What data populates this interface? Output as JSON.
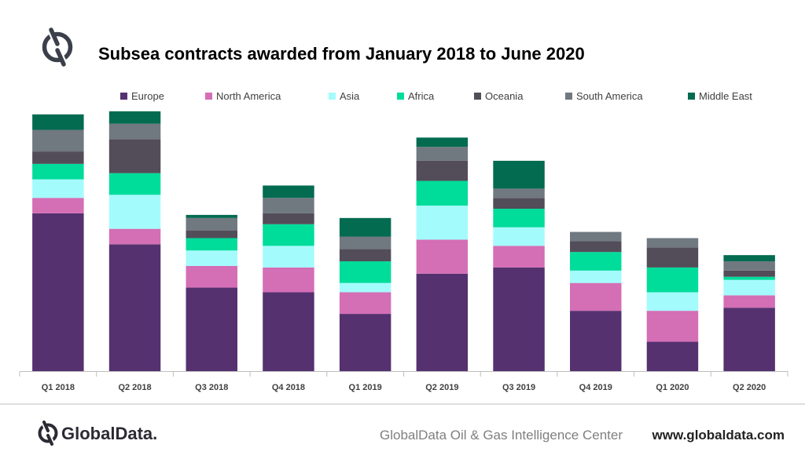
{
  "header": {
    "title": "Subsea contracts awarded from January 2018 to June 2020"
  },
  "footer": {
    "brand": "GlobalData.",
    "source": "GlobalData Oil & Gas Intelligence Center",
    "url": "www.globaldata.com"
  },
  "colors": {
    "logo": "#3a3f4a",
    "separator": "#bfbfbf"
  },
  "chart_data": {
    "type": "bar",
    "stacked": true,
    "title": "Subsea contracts awarded from January 2018 to June 2020",
    "xlabel": "",
    "ylabel": "",
    "ylim": [
      0,
      87
    ],
    "legend_position": "top",
    "grid": false,
    "categories": [
      "Q1 2018",
      "Q2 2018",
      "Q3 2018",
      "Q4 2018",
      "Q1 2019",
      "Q2 2019",
      "Q3 2019",
      "Q4 2019",
      "Q1 2020",
      "Q2 2020"
    ],
    "series": [
      {
        "name": "Europe",
        "color": "#553170",
        "values": [
          51,
          41,
          27,
          25.5,
          18.5,
          31.5,
          33.5,
          19.5,
          9.5,
          20.5
        ]
      },
      {
        "name": "North America",
        "color": "#d46eb5",
        "values": [
          5,
          5,
          7,
          8,
          7,
          11,
          7,
          9,
          10,
          4
        ]
      },
      {
        "name": "Asia",
        "color": "#a4fbfc",
        "values": [
          6,
          11,
          5,
          7,
          3,
          11,
          6,
          4,
          6,
          5
        ]
      },
      {
        "name": "Africa",
        "color": "#00dc9a",
        "values": [
          5,
          7,
          4,
          7,
          7,
          8,
          6,
          6,
          8,
          1
        ]
      },
      {
        "name": "Oceania",
        "color": "#524d58",
        "values": [
          4,
          11,
          2.5,
          3.5,
          4,
          6.5,
          3.5,
          3.5,
          6.5,
          2
        ]
      },
      {
        "name": "South America",
        "color": "#707880",
        "values": [
          7,
          5,
          4,
          5,
          4,
          4.5,
          3,
          3,
          3,
          3
        ]
      },
      {
        "name": "Middle East",
        "color": "#036b50",
        "values": [
          5,
          4,
          1,
          4,
          6,
          3,
          9,
          0,
          0,
          2
        ]
      }
    ]
  }
}
